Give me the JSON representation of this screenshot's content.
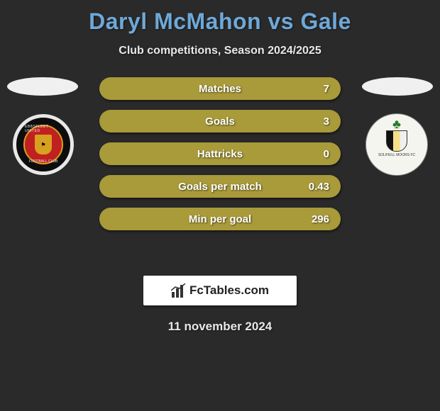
{
  "title": "Daryl McMahon vs Gale",
  "subtitle": "Club competitions, Season 2024/2025",
  "date": "11 november 2024",
  "title_color": "#6ea8d8",
  "text_color": "#e8e8e8",
  "background_color": "#2a2a2a",
  "avatar_color": "#f0f0f0",
  "stats_bar_color": "#a99a3a",
  "logo_bar_color": "#4a7fb0",
  "left_crest": {
    "outer_ring": "#e8e8e8",
    "body": "#0d0d0d",
    "inner_ring": "#d8a020",
    "inner_fill": "#c02020",
    "top_text": "EBBSFLEET UNITED",
    "bottom_text": "FOOTBALL CLUB"
  },
  "right_crest": {
    "body": "#f5f5f0",
    "top_text": "SOLIHULL MOORS FC"
  },
  "stats": [
    {
      "label": "Matches",
      "value": "7"
    },
    {
      "label": "Goals",
      "value": "3"
    },
    {
      "label": "Hattricks",
      "value": "0"
    },
    {
      "label": "Goals per match",
      "value": "0.43"
    },
    {
      "label": "Min per goal",
      "value": "296"
    }
  ],
  "brand": "FcTables.com"
}
